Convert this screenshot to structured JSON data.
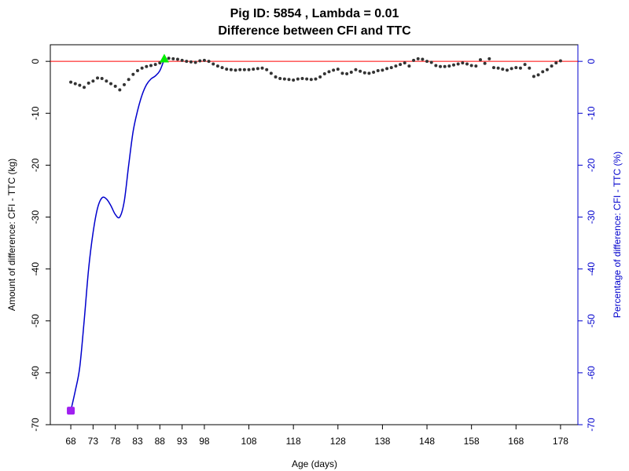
{
  "chart_data": {
    "type": "line",
    "title": "Pig ID: 5854 , Lambda = 0.01",
    "subtitle": "Difference between CFI and TTC",
    "x_label": "Age (days)",
    "y_label": "Amount of difference: CFI - TTC (kg)",
    "y2_label": "Percentage of difference: CFI - TTC (%)",
    "xlim": [
      63.4,
      181.9
    ],
    "xticks": [
      68,
      73,
      78,
      83,
      88,
      93,
      98,
      108,
      118,
      128,
      138,
      148,
      158,
      168,
      178
    ],
    "ylim": [
      -70,
      3.2
    ],
    "yticks": [
      0,
      -10,
      -20,
      -30,
      -40,
      -50,
      -60,
      -70
    ],
    "y2lim": [
      -70,
      3.2
    ],
    "y2ticks": [
      0,
      -10,
      -20,
      -30,
      -40,
      -50,
      -60,
      -70
    ],
    "y2_color": "#0000cd",
    "hline": {
      "value": 0,
      "color": "#ff0000"
    },
    "series": [
      {
        "style": "points",
        "color": "#333333",
        "x": [
          68,
          69,
          70,
          71,
          72,
          73,
          74,
          75,
          76,
          77,
          78,
          79,
          80,
          81,
          82,
          83,
          84,
          85,
          86,
          87,
          88,
          89,
          90,
          91,
          92,
          93,
          94,
          95,
          96,
          97,
          98,
          99,
          100,
          101,
          102,
          103,
          104,
          105,
          106,
          107,
          108,
          109,
          110,
          111,
          112,
          113,
          114,
          115,
          116,
          117,
          118,
          119,
          120,
          121,
          122,
          123,
          124,
          125,
          126,
          127,
          128,
          129,
          130,
          131,
          132,
          133,
          134,
          135,
          136,
          137,
          138,
          139,
          140,
          141,
          142,
          143,
          144,
          145,
          146,
          147,
          148,
          149,
          150,
          151,
          152,
          153,
          154,
          155,
          156,
          157,
          158,
          159,
          160,
          161,
          162,
          163,
          164,
          165,
          166,
          167,
          168,
          169,
          170,
          171,
          172,
          173,
          174,
          175,
          176,
          177,
          178
        ],
        "values": [
          -4,
          -4.3,
          -4.6,
          -5,
          -4.2,
          -3.8,
          -3.2,
          -3.3,
          -3.8,
          -4.3,
          -4.8,
          -5.5,
          -4.5,
          -3.5,
          -2.5,
          -1.8,
          -1.3,
          -1,
          -0.8,
          -0.6,
          -0.3,
          0.3,
          0.6,
          0.5,
          0.4,
          0.2,
          0,
          -0.1,
          -0.2,
          0.1,
          0.2,
          0,
          -0.5,
          -0.9,
          -1.2,
          -1.5,
          -1.6,
          -1.7,
          -1.6,
          -1.6,
          -1.6,
          -1.5,
          -1.4,
          -1.3,
          -1.6,
          -2.3,
          -3,
          -3.3,
          -3.4,
          -3.5,
          -3.6,
          -3.4,
          -3.3,
          -3.4,
          -3.5,
          -3.4,
          -3,
          -2.4,
          -2,
          -1.7,
          -1.5,
          -2.3,
          -2.4,
          -2.1,
          -1.6,
          -1.9,
          -2.2,
          -2.3,
          -2.1,
          -1.8,
          -1.7,
          -1.4,
          -1.2,
          -0.9,
          -0.6,
          -0.3,
          -0.9,
          0.2,
          0.5,
          0.4,
          0,
          -0.2,
          -0.8,
          -1,
          -1,
          -0.9,
          -0.7,
          -0.5,
          -0.3,
          -0.5,
          -0.8,
          -0.9,
          0.3,
          -0.4,
          0.5,
          -1.2,
          -1.3,
          -1.5,
          -1.7,
          -1.4,
          -1.2,
          -1.3,
          -0.6,
          -1.3,
          -2.9,
          -2.6,
          -2,
          -1.6,
          -0.9,
          -0.3,
          0.1
        ]
      },
      {
        "style": "line",
        "axis": "y2",
        "color": "#0000cd",
        "x": [
          68,
          69,
          70,
          71,
          72,
          73,
          74,
          75,
          76,
          77,
          78,
          79,
          80,
          81,
          82,
          83,
          84,
          85,
          86,
          87,
          88,
          89
        ],
        "values": [
          -67.3,
          -63.5,
          -59,
          -50,
          -40,
          -33,
          -28.3,
          -26.3,
          -26.5,
          -27.8,
          -29.5,
          -30,
          -27,
          -20,
          -13.5,
          -9.5,
          -6.5,
          -4.5,
          -3.4,
          -2.8,
          -1.8,
          0.4
        ]
      }
    ],
    "start_marker": {
      "x": 68,
      "y": -67.3,
      "color": "#a020f0"
    },
    "end_marker": {
      "x": 89,
      "y": 0.4,
      "color": "#00ee00"
    }
  }
}
